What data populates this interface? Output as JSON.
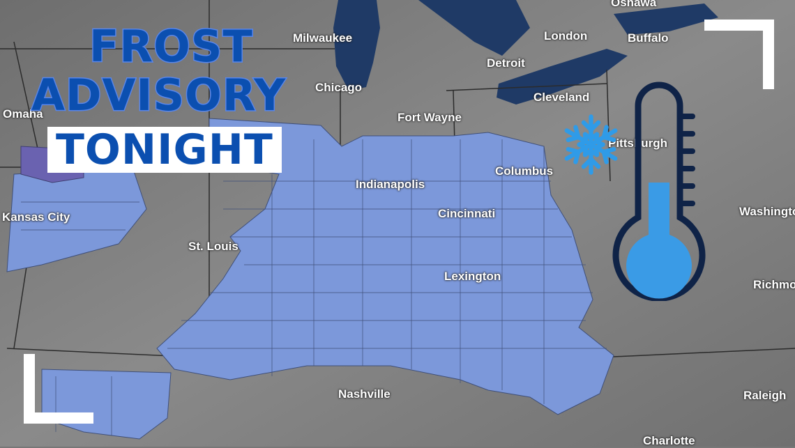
{
  "title": {
    "line1": "FROST",
    "line2": "ADVISORY",
    "line3": "TONIGHT"
  },
  "cities": [
    "Oshawa",
    "Milwaukee",
    "London",
    "Buffalo",
    "Detroit",
    "Chicago",
    "Cleveland",
    "Omaha",
    "Fort Wayne",
    "Pittsburgh",
    "Columbus",
    "Indianapolis",
    "Kansas City",
    "Cincinnati",
    "Washington",
    "St. Louis",
    "Lexington",
    "Richmond",
    "Nashville",
    "Raleigh",
    "Charlotte"
  ],
  "icons": [
    "thermometer-icon",
    "snowflake-icon"
  ],
  "colors": {
    "advisory": "#7c98da",
    "advisory_alt": "#6a62b0",
    "title": "#0b4fb0",
    "lake": "#1f3a66",
    "land": "#777777",
    "thermometer_fill": "#3a9be6",
    "thermometer_outline": "#0f2347"
  }
}
